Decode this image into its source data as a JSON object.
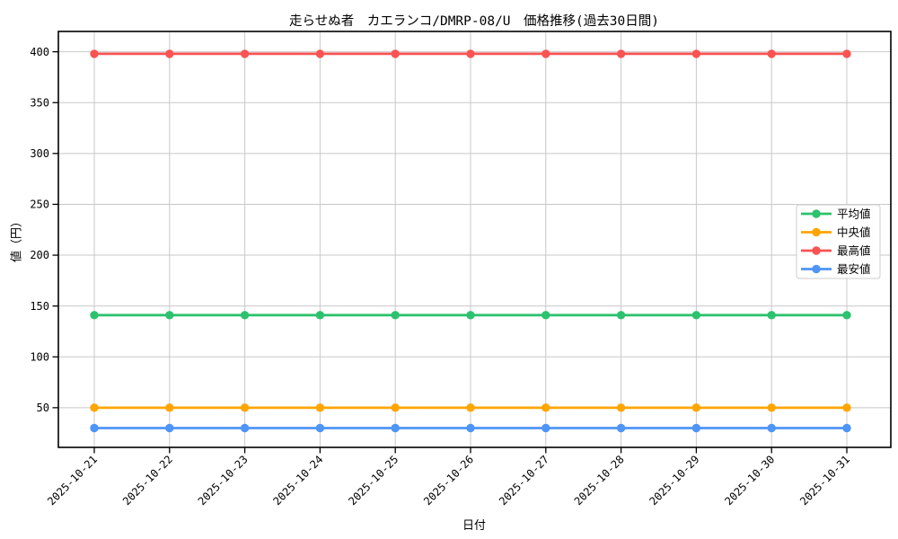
{
  "chart_data": {
    "type": "line",
    "title": "走らせぬ者　カエランコ/DMRP-08/U　価格推移(過去30日間)",
    "xlabel": "日付",
    "ylabel": "値（円）",
    "categories": [
      "2025-10-21",
      "2025-10-22",
      "2025-10-23",
      "2025-10-24",
      "2025-10-25",
      "2025-10-26",
      "2025-10-27",
      "2025-10-28",
      "2025-10-29",
      "2025-10-30",
      "2025-10-31"
    ],
    "series": [
      {
        "name": "平均値",
        "color": "#2dc26e",
        "values": [
          141,
          141,
          141,
          141,
          141,
          141,
          141,
          141,
          141,
          141,
          141
        ]
      },
      {
        "name": "中央値",
        "color": "#ffa502",
        "values": [
          50,
          50,
          50,
          50,
          50,
          50,
          50,
          50,
          50,
          50,
          50
        ]
      },
      {
        "name": "最高値",
        "color": "#f95353",
        "values": [
          398,
          398,
          398,
          398,
          398,
          398,
          398,
          398,
          398,
          398,
          398
        ]
      },
      {
        "name": "最安値",
        "color": "#4e95f6",
        "values": [
          30,
          30,
          30,
          30,
          30,
          30,
          30,
          30,
          30,
          30,
          30
        ]
      }
    ],
    "ylim": [
      11,
      420
    ],
    "yticks": [
      50,
      100,
      150,
      200,
      250,
      300,
      350,
      400
    ],
    "grid": true,
    "legend": {
      "position": "center right",
      "entries": [
        "平均値",
        "中央値",
        "最高値",
        "最安値"
      ]
    }
  },
  "style": {
    "background": "#ffffff",
    "grid_color": "#c8c8c8",
    "axis_color": "#000000",
    "legend_border": "#cccccc",
    "legend_background": "#ffffff"
  }
}
